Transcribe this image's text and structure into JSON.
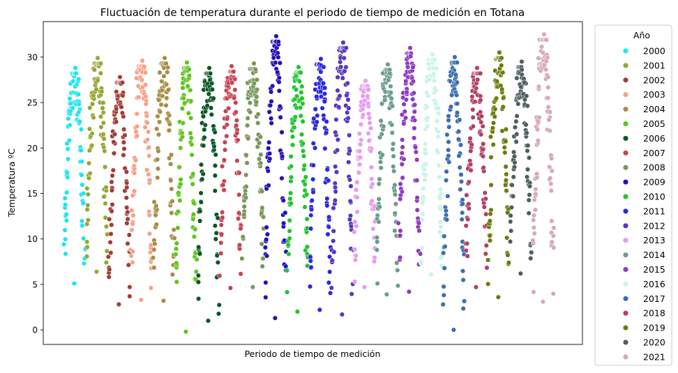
{
  "chart_data": {
    "type": "scatter",
    "title": "Fluctuación de temperatura durante el periodo de tiempo de medición en Totana",
    "xlabel": "Periodo de tiempo de medición",
    "ylabel": "Temperatura ºC",
    "ylim": [
      -1.6,
      33.9
    ],
    "yticks": [
      0,
      5,
      10,
      15,
      20,
      25,
      30
    ],
    "grid": false,
    "x_ticks_shown": false,
    "legend": {
      "title": "Año",
      "placement": "outside-right"
    },
    "series": [
      {
        "name": "2000",
        "color": "#1ee5f0",
        "min": 5.1,
        "max": 28.8
      },
      {
        "name": "2001",
        "color": "#96a733",
        "min": 6.4,
        "max": 29.9
      },
      {
        "name": "2002",
        "color": "#a23d35",
        "min": 2.8,
        "max": 27.8
      },
      {
        "name": "2003",
        "color": "#f6a287",
        "min": 3.3,
        "max": 29.6
      },
      {
        "name": "2004",
        "color": "#a88d45",
        "min": 3.2,
        "max": 29.9
      },
      {
        "name": "2005",
        "color": "#5dc61d",
        "min": -0.2,
        "max": 29.4
      },
      {
        "name": "2006",
        "color": "#0d5625",
        "min": 1.0,
        "max": 28.8
      },
      {
        "name": "2007",
        "color": "#c54452",
        "min": 4.6,
        "max": 29.0
      },
      {
        "name": "2008",
        "color": "#789759",
        "min": 4.7,
        "max": 29.3
      },
      {
        "name": "2009",
        "color": "#2311b9",
        "min": 1.3,
        "max": 32.3
      },
      {
        "name": "2010",
        "color": "#22c42e",
        "min": 2.0,
        "max": 28.9
      },
      {
        "name": "2011",
        "color": "#2b28e2",
        "min": 2.2,
        "max": 29.8
      },
      {
        "name": "2012",
        "color": "#5438be",
        "min": 1.7,
        "max": 31.6
      },
      {
        "name": "2013",
        "color": "#e89ced",
        "min": 4.7,
        "max": 27.4
      },
      {
        "name": "2014",
        "color": "#6a9c8c",
        "min": 3.9,
        "max": 29.2
      },
      {
        "name": "2015",
        "color": "#903ac3",
        "min": 4.2,
        "max": 31.0
      },
      {
        "name": "2016",
        "color": "#c9f4e9",
        "min": 6.1,
        "max": 30.3
      },
      {
        "name": "2017",
        "color": "#3c6eaf",
        "min": 0.0,
        "max": 30.0
      },
      {
        "name": "2018",
        "color": "#b53f61",
        "min": 4.7,
        "max": 28.8
      },
      {
        "name": "2019",
        "color": "#697d0a",
        "min": 3.6,
        "max": 30.5
      },
      {
        "name": "2020",
        "color": "#4d5f5e",
        "min": 6.2,
        "max": 29.5
      },
      {
        "name": "2021",
        "color": "#d7a9b9",
        "min": 3.1,
        "max": 32.5
      }
    ]
  }
}
